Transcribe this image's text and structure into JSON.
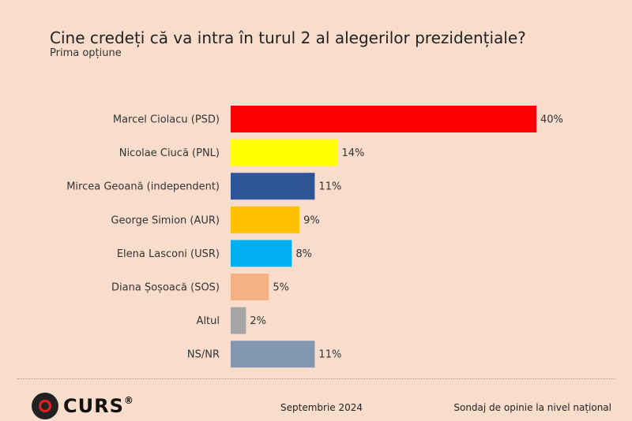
{
  "chart_data": {
    "type": "bar",
    "orientation": "horizontal",
    "title": "Cine credeți că va intra în turul 2 al alegerilor prezidențiale?",
    "subtitle": "Prima opțiune",
    "categories": [
      "Marcel Ciolacu (PSD)",
      "Nicolae Ciucă (PNL)",
      "Mircea Geoană (independent)",
      "George Simion (AUR)",
      "Elena Lasconi (USR)",
      "Diana Șoșoacă (SOS)",
      "Altul",
      "NS/NR"
    ],
    "values": [
      40,
      14,
      11,
      9,
      8,
      5,
      2,
      11
    ],
    "labels": [
      "40%",
      "14%",
      "11%",
      "9%",
      "8%",
      "5%",
      "2%",
      "11%"
    ],
    "colors": [
      "#fe0000",
      "#ffff00",
      "#2e5597",
      "#ffc000",
      "#00b0f0",
      "#f4b183",
      "#a5a5a5",
      "#8497b0"
    ],
    "unit": "%",
    "grid": false
  },
  "footer": {
    "logo": "CURS",
    "logo_reg": "®",
    "date": "Septembrie 2024",
    "source": "Sondaj de opinie la nivel național"
  }
}
